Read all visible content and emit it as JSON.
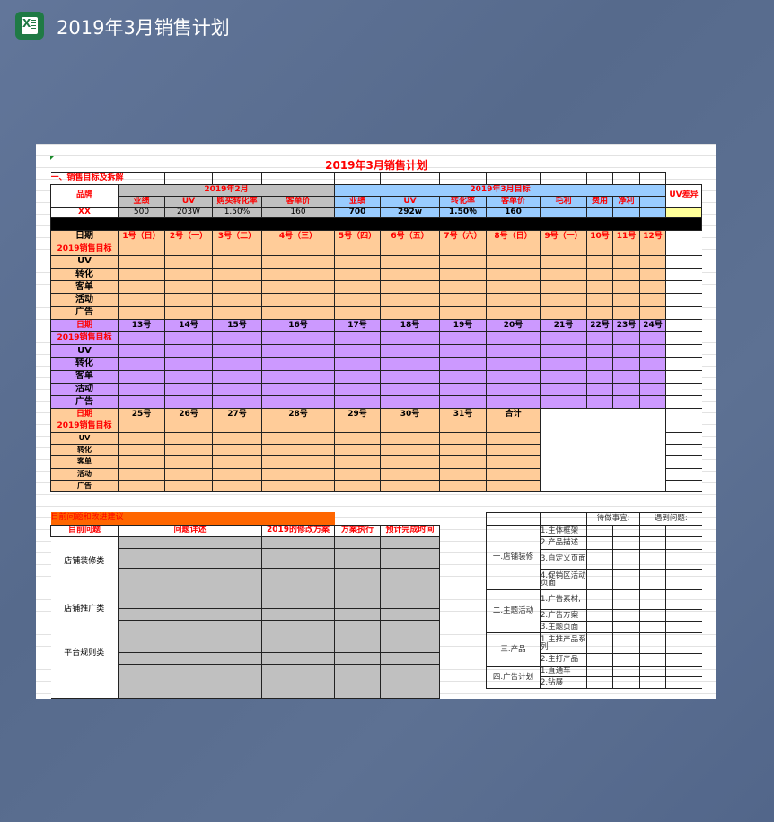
{
  "app": {
    "title": "2019年3月销售计划",
    "icon": "excel-icon"
  },
  "sheet": {
    "title": "2019年3月销售计划",
    "section1": "一、销售目标及拆解",
    "brand_label": "品牌",
    "brand_value": "XX",
    "feb": {
      "title": "2019年2月",
      "headers": [
        "业绩",
        "UV",
        "购买转化率",
        "客单价"
      ],
      "values": [
        "500",
        "203W",
        "1.50%",
        "160"
      ]
    },
    "mar": {
      "title": "2019年3月目标",
      "headers": [
        "业绩",
        "UV",
        "转化率",
        "客单价",
        "毛利",
        "费用",
        "净利",
        ""
      ],
      "values": [
        "700",
        "292w",
        "1.50％",
        "160",
        "",
        "",
        "",
        ""
      ]
    },
    "uv_diff_label": "UV差异",
    "row_labels": [
      "日期",
      "2019销售目标",
      "UV",
      "转化",
      "客单",
      "活动",
      "广告"
    ],
    "blocks": [
      {
        "dates": [
          "1号（日）",
          "2号（一）",
          "3号（二）",
          "4号（三）",
          "5号（四）",
          "6号（五）",
          "7号（六）",
          "8号（日）",
          "9号（一）",
          "10号",
          "11号",
          "12号"
        ]
      },
      {
        "dates": [
          "13号",
          "14号",
          "15号",
          "16号",
          "17号",
          "18号",
          "19号",
          "20号",
          "21号",
          "22号",
          "23号",
          "24号"
        ]
      },
      {
        "dates": [
          "25号",
          "26号",
          "27号",
          "28号",
          "29号",
          "30号",
          "31号",
          "合计"
        ]
      }
    ],
    "issues": {
      "section_title": "目前问题和改进建议",
      "headers": [
        "目前问题",
        "问题详述",
        "2019的修改方案",
        "方案执行",
        "预计完成时间"
      ],
      "categories": [
        "店铺装修类",
        "店铺推广类",
        "平台规则类",
        ""
      ]
    },
    "todo": {
      "todo_label": "待做事宜:",
      "problem_label": "遇到问题:",
      "groups": [
        {
          "name": "一.店铺装修",
          "items": [
            "1.主体框架",
            "2.产品描述",
            "3.自定义页面",
            "4.促销区活动页面"
          ]
        },
        {
          "name": "二.主题活动",
          "items": [
            "1.广告素材,",
            "2.广告方案",
            "3.主题页面"
          ]
        },
        {
          "name": "三.产品",
          "items": [
            "1.主推产品系列",
            "2.主打产品"
          ]
        },
        {
          "name": "四.广告计划",
          "items": [
            "1.直通车",
            "2.钻展"
          ]
        }
      ]
    }
  },
  "colors": {
    "orange_fill": "#ffcc99",
    "purple_fill": "#cc99ff",
    "gray_fill": "#c0c0c0",
    "blue_fill": "#99ccff",
    "yellow_fill": "#ffff99",
    "accent_red": "#ff0000",
    "bar_orange": "#ff6600"
  }
}
